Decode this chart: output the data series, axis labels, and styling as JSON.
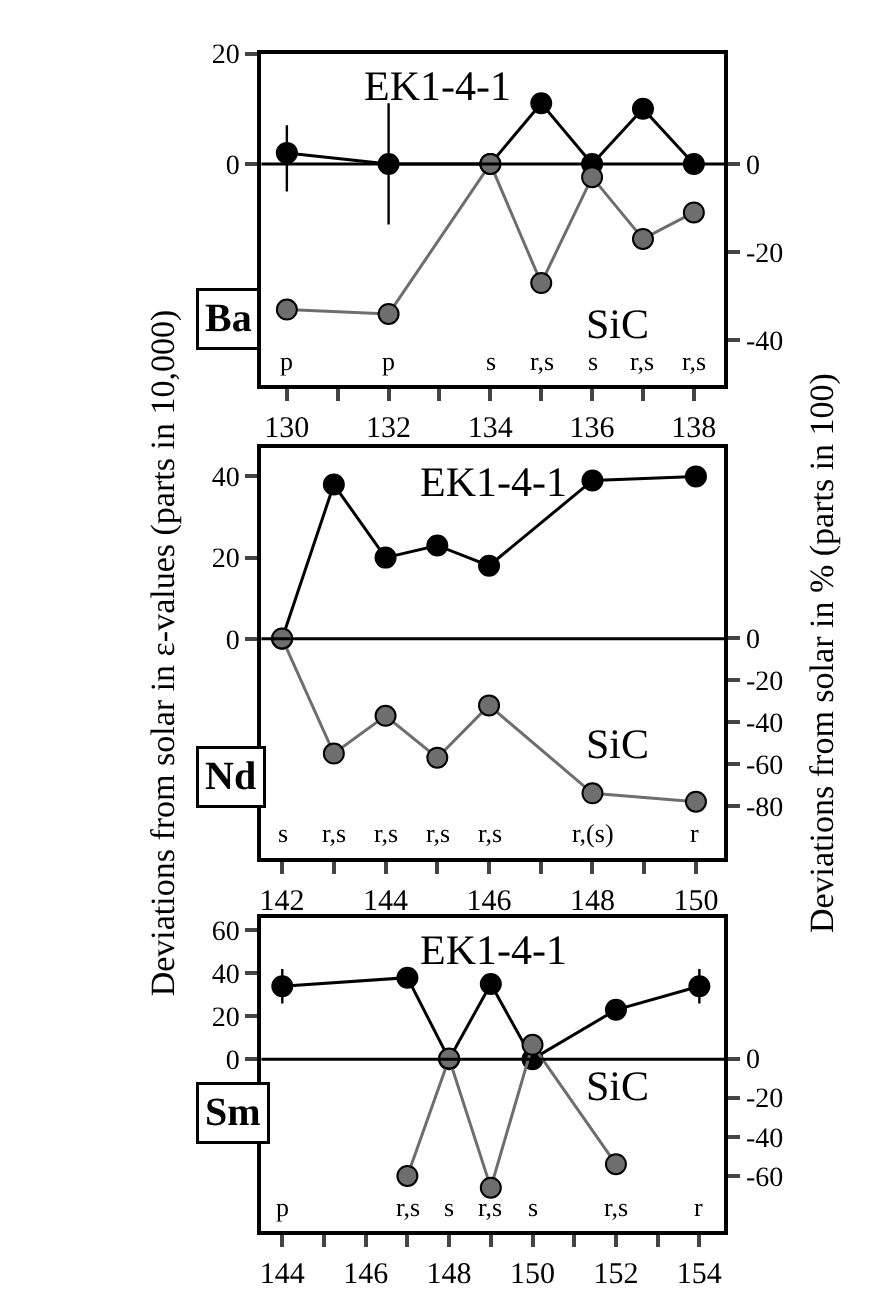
{
  "chart_data": [
    {
      "type": "line",
      "marker": "circle",
      "line_style": "solid",
      "legend": false,
      "x": [
        130,
        132,
        134,
        135,
        136,
        137,
        138
      ],
      "xlim": [
        129.5,
        138.6
      ],
      "xticks": [
        130,
        {
          "value": 131,
          "label": null
        },
        132,
        {
          "value": 133,
          "label": null
        },
        134,
        {
          "value": 135,
          "label": null
        },
        136,
        {
          "value": 137,
          "label": null
        },
        138
      ],
      "ylim": [
        -40,
        20
      ],
      "yticks": [
        0,
        20
      ],
      "y2lim": [
        -50,
        25
      ],
      "y2ticks": [
        -40,
        -20,
        0
      ],
      "series": [
        {
          "name": "EK1-4-1",
          "color": "#000000",
          "values": [
            2,
            0,
            0,
            11,
            0,
            10,
            0
          ],
          "errors": [
            [
              -5,
              7
            ],
            11,
            null,
            null,
            null,
            null,
            null
          ]
        },
        {
          "name": "SiC",
          "color": "#6e6e6e",
          "axis": "y2",
          "values": [
            -33,
            -34,
            0,
            -27,
            -3,
            -17,
            -11
          ]
        }
      ],
      "ref_lines": [
        {
          "axis": "y",
          "value": 0
        }
      ],
      "annotations": [
        "Ba",
        "p",
        "p",
        "s",
        "r,s",
        "s",
        "r,s",
        "r,s"
      ]
    },
    {
      "type": "line",
      "marker": "circle",
      "line_style": "solid",
      "legend": false,
      "ylabel": "Deviations from solar in ε-values (parts in 10,000)",
      "y2label": "Deviations from solar in % (parts in 100)",
      "x": [
        142,
        143,
        144,
        145,
        146,
        148,
        150
      ],
      "xlim": [
        141.6,
        150.55
      ],
      "xticks": [
        142,
        {
          "value": 143,
          "label": null
        },
        144,
        {
          "value": 145,
          "label": null
        },
        146,
        {
          "value": 147,
          "label": null
        },
        148,
        {
          "value": 149,
          "label": null
        },
        150
      ],
      "ylim": [
        -54,
        47
      ],
      "yticks": [
        0,
        20,
        40
      ],
      "y2lim": [
        -105,
        91
      ],
      "y2ticks": [
        -80,
        -60,
        -40,
        -20,
        0
      ],
      "series": [
        {
          "name": "EK1-4-1",
          "color": "#000000",
          "values": [
            0,
            38,
            20,
            23,
            18,
            39,
            40
          ]
        },
        {
          "name": "SiC",
          "color": "#6e6e6e",
          "axis": "y2",
          "values": [
            0,
            -55,
            -37,
            -57,
            -32,
            -74,
            -78
          ]
        }
      ],
      "ref_lines": [
        {
          "axis": "y",
          "value": 0
        }
      ],
      "annotations": [
        "Nd",
        "s",
        "r,s",
        "r,s",
        "r,s",
        "r,s",
        "r,(s)",
        "r"
      ]
    },
    {
      "type": "line",
      "marker": "circle",
      "line_style": "solid",
      "legend": false,
      "xlim": [
        143.5,
        154.6
      ],
      "xticks": [
        144,
        {
          "value": 145,
          "label": null
        },
        146,
        {
          "value": 147,
          "label": null
        },
        148,
        {
          "value": 149,
          "label": null
        },
        150,
        {
          "value": 151,
          "label": null
        },
        152,
        {
          "value": 153,
          "label": null
        },
        154
      ],
      "ylim": [
        -80,
        66
      ],
      "yticks": [
        0,
        20,
        40,
        60
      ],
      "y2lim": [
        -88,
        72
      ],
      "y2ticks": [
        -60,
        -40,
        -20,
        0
      ],
      "series": [
        {
          "name": "EK1-4-1",
          "color": "#000000",
          "x": [
            144,
            147,
            148,
            149,
            150,
            152,
            154
          ],
          "values": [
            34,
            38,
            0,
            35,
            0,
            23,
            34
          ],
          "errors": [
            8,
            null,
            null,
            null,
            null,
            null,
            8
          ]
        },
        {
          "name": "SiC",
          "color": "#6e6e6e",
          "axis": "y2",
          "x": [
            147,
            148,
            149,
            150,
            152
          ],
          "values": [
            -60,
            0,
            -66,
            7,
            -54
          ]
        }
      ],
      "ref_lines": [
        {
          "axis": "y",
          "value": 0
        }
      ],
      "annotations": [
        "Sm",
        "p",
        "r,s",
        "s",
        "r,s",
        "s",
        "r,s",
        "r"
      ]
    }
  ]
}
